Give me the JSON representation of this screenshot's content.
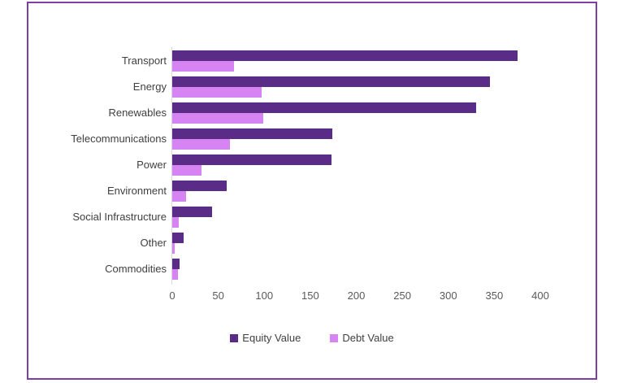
{
  "frame": {
    "border_color": "#7D3FA5",
    "background_color": "#FFFFFF"
  },
  "chart_data": {
    "type": "bar",
    "orientation": "horizontal",
    "title": "",
    "xlabel": "",
    "ylabel": "",
    "grid": false,
    "legend_position": "bottom",
    "categories": [
      "Transport",
      "Energy",
      "Renewables",
      "Telecommunications",
      "Power",
      "Environment",
      "Social Infrastructure",
      "Other",
      "Commodities"
    ],
    "series": [
      {
        "name": "Equity Value",
        "color": "#5B2C87",
        "values": [
          375,
          345,
          330,
          174,
          173,
          59,
          43,
          12,
          8
        ]
      },
      {
        "name": "Debt Value",
        "color": "#D584F2",
        "values": [
          67,
          97,
          99,
          63,
          32,
          15,
          7,
          3,
          6
        ]
      }
    ],
    "xlim": [
      0,
      400
    ],
    "x_ticks": [
      0,
      50,
      100,
      150,
      200,
      250,
      300,
      350,
      400
    ]
  },
  "legend": {
    "items": [
      {
        "label": "Equity Value",
        "color": "#5B2C87"
      },
      {
        "label": "Debt Value",
        "color": "#D584F2"
      }
    ]
  },
  "style": {
    "category_label_color": "#404040",
    "tick_label_color": "#595959",
    "axis_line_color": "#D9D9D9"
  }
}
